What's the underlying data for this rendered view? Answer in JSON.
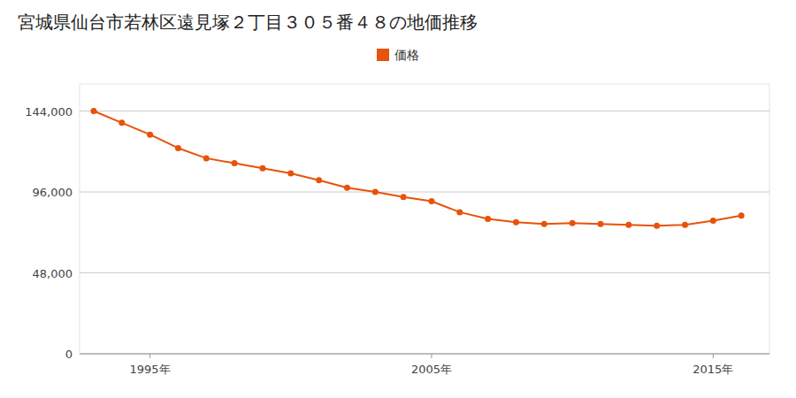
{
  "chart_data": {
    "type": "line",
    "title": "宮城県仙台市若林区遠見塚２丁目３０５番４８の地価推移",
    "x": [
      1993,
      1994,
      1995,
      1996,
      1997,
      1998,
      1999,
      2000,
      2001,
      2002,
      2003,
      2004,
      2005,
      2006,
      2007,
      2008,
      2009,
      2010,
      2011,
      2012,
      2013,
      2014,
      2015,
      2016
    ],
    "series": [
      {
        "name": "価格",
        "color": "#E8520A",
        "marker": "circle",
        "values": [
          144000,
          137000,
          130000,
          122000,
          116000,
          113000,
          110000,
          107000,
          103000,
          98500,
          96000,
          93000,
          90500,
          84000,
          80000,
          78000,
          77000,
          77500,
          77000,
          76500,
          76000,
          76500,
          79000,
          82000
        ]
      }
    ],
    "xlim": [
      1992.5,
      2017
    ],
    "xticks": [
      {
        "value": 1995,
        "label": "1995年"
      },
      {
        "value": 2005,
        "label": "2005年"
      },
      {
        "value": 2015,
        "label": "2015年"
      }
    ],
    "ylim": [
      0,
      160000
    ],
    "yticks": [
      0,
      {
        "value": 48000,
        "label": "48,000"
      },
      {
        "value": 96000,
        "label": "96,000"
      },
      {
        "value": 144000,
        "label": "144,000"
      }
    ],
    "grid": true,
    "legend": "top"
  }
}
